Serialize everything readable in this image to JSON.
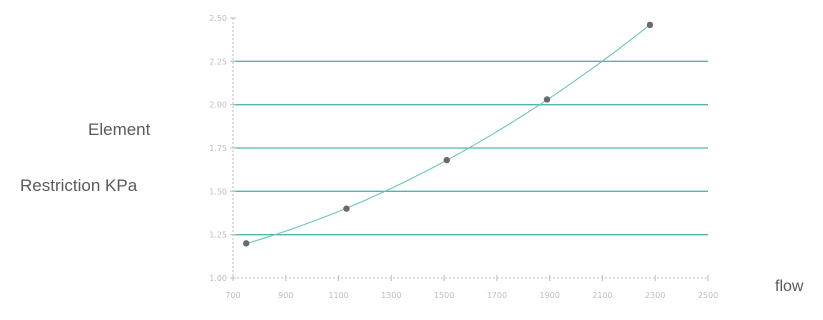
{
  "chart_data": {
    "type": "line",
    "title": "",
    "ylabel_lines": [
      "Element",
      "Restriction KPa"
    ],
    "xlabel": "flow",
    "xlim": [
      700,
      2500
    ],
    "ylim": [
      1.0,
      2.5
    ],
    "x_ticks": [
      "700",
      "900",
      "1100",
      "1300",
      "1500",
      "1700",
      "1900",
      "2100",
      "2300",
      "2500"
    ],
    "y_ticks": [
      "1.00",
      "1.25",
      "1.50",
      "1.75",
      "2.00",
      "2.25",
      "2.50"
    ],
    "grid": "horizontal",
    "series": [
      {
        "x": [
          750,
          1130,
          1510,
          1890,
          2280
        ],
        "y": [
          1.2,
          1.4,
          1.68,
          2.03,
          2.46
        ],
        "trendline": "polynomial"
      }
    ],
    "colors": {
      "gridline": "#4fb6b0",
      "trendline": "#6cc5bf",
      "marker": "#6a6a6a",
      "axis": "#bfbfbf"
    }
  }
}
